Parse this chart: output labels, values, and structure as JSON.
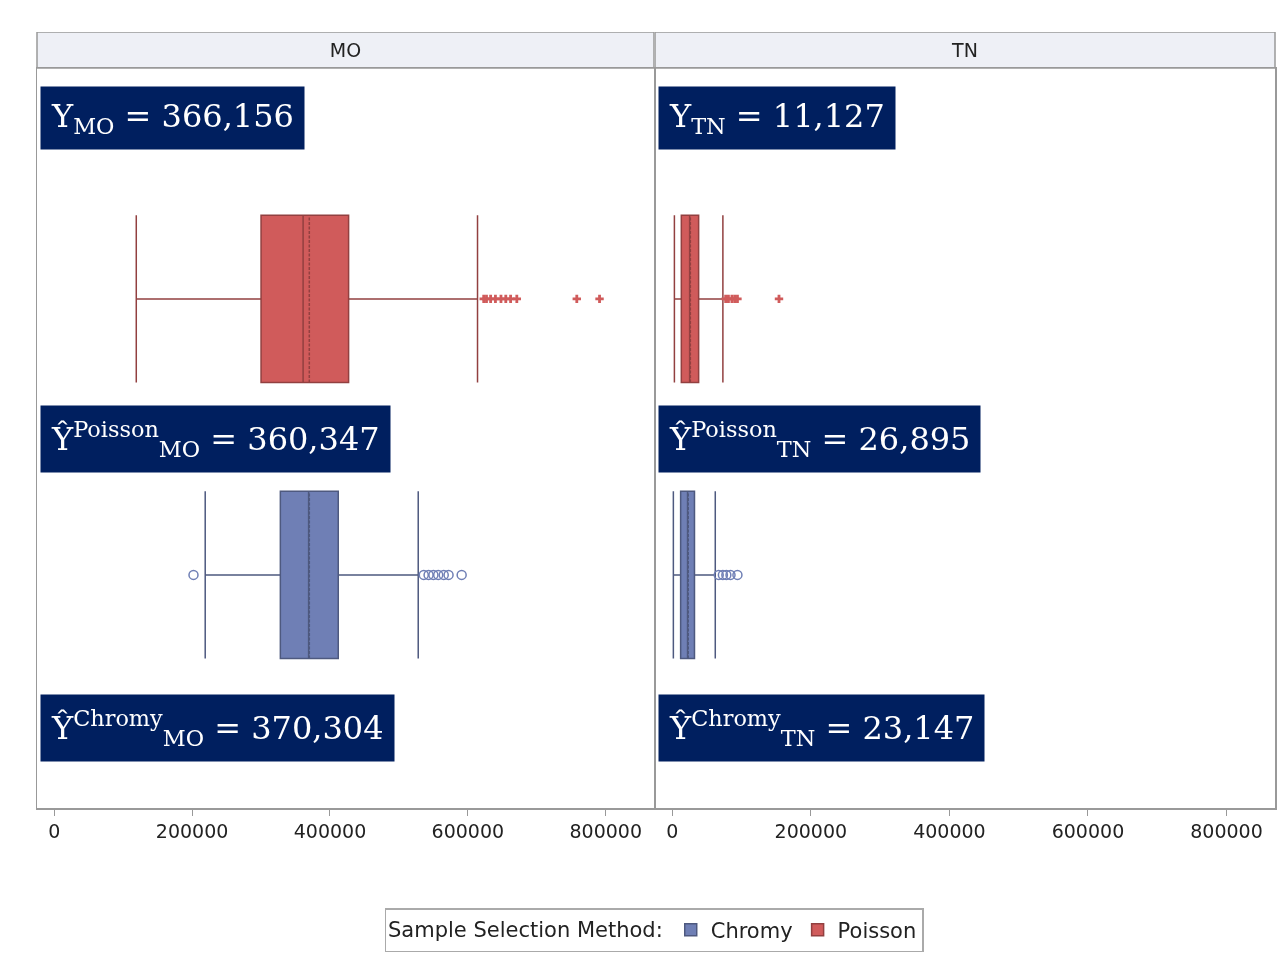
{
  "chart_data": [
    {
      "type": "box",
      "title": "MO",
      "orientation": "horizontal",
      "categories": [
        null
      ],
      "xlim": [
        -25000,
        870000
      ],
      "xticks": [
        0,
        200000,
        400000,
        600000,
        800000
      ],
      "grid": false,
      "legend": "bottom",
      "legend_title": "Sample Selection Method:",
      "tick_labels": "x",
      "annotations": [
        "Y$_{MO}$ = 366,156",
        "Ŷ$^{Poisson}$$_{MO}$ = 360,347",
        "Ŷ$^{Chromy}$$_{MO}$ = 370,304"
      ],
      "series": [
        {
          "name": "Chromy",
          "color": "#6f7fb5",
          "marker": "circle",
          "boxes": [
            {
              "low": 219000,
              "q1": 328000,
              "median": 369000,
              "q3": 412000,
              "high": 528000,
              "mean": 370000,
              "outliers": [
                202000,
                536000,
                543000,
                550000,
                557000,
                565000,
                572000,
                591000
              ]
            }
          ]
        },
        {
          "name": "Poisson",
          "color": "#d05b5b",
          "marker": "cross",
          "boxes": [
            {
              "low": 119000,
              "q1": 300000,
              "median": 361000,
              "q3": 427000,
              "high": 614000,
              "mean": 370000,
              "outliers": [
                623000,
                627000,
                633000,
                640000,
                648000,
                655000,
                662000,
                671000,
                758000,
                791000
              ]
            }
          ]
        }
      ]
    },
    {
      "type": "box",
      "title": "TN",
      "orientation": "horizontal",
      "categories": [
        null
      ],
      "xlim": [
        -25000,
        870000
      ],
      "xticks": [
        0,
        200000,
        400000,
        600000,
        800000
      ],
      "grid": false,
      "tick_labels": "x",
      "annotations": [
        "Y$_{TN}$ = 11,127",
        "Ŷ$^{Poisson}$$_{TN}$ = 26,895",
        "Ŷ$^{Chromy}$$_{TN}$ = 23,147"
      ],
      "series": [
        {
          "color": "#6f7fb5",
          "marker": "circle",
          "boxes": [
            {
              "low": 1500,
              "q1": 12000,
              "median": 22000,
              "q3": 32000,
              "high": 62000,
              "mean": 23000,
              "outliers": [
                67000,
                73000,
                78000,
                84000,
                94000
              ]
            }
          ]
        },
        {
          "color": "#d05b5b",
          "marker": "cross",
          "boxes": [
            {
              "low": 3000,
              "q1": 13000,
              "median": 25000,
              "q3": 38000,
              "high": 73000,
              "mean": 26000,
              "outliers": [
                77000,
                81000,
                86000,
                90000,
                94000,
                154000
              ]
            }
          ]
        }
      ]
    }
  ]
}
